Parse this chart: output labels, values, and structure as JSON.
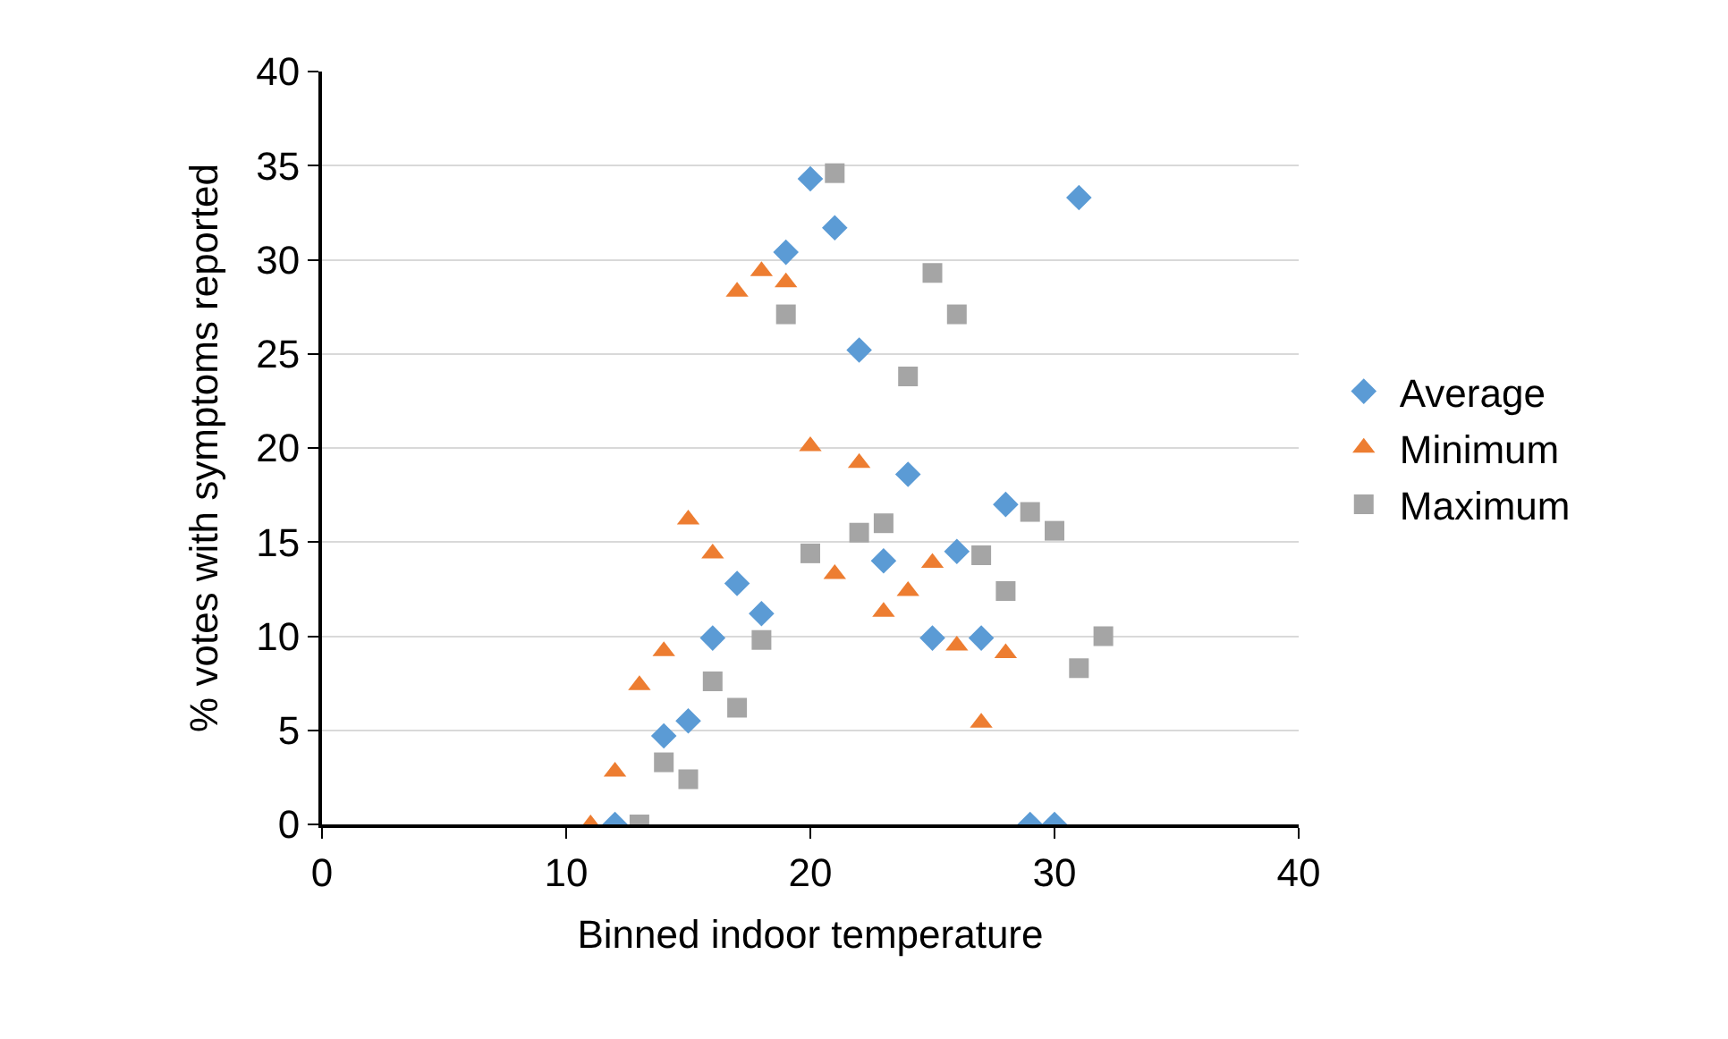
{
  "chart_data": {
    "type": "scatter",
    "xlabel": "Binned indoor temperature",
    "ylabel": "% votes with symptoms reported",
    "xlim": [
      0,
      40
    ],
    "xticks": [
      0,
      10,
      20,
      30,
      40
    ],
    "ylim": [
      0,
      40
    ],
    "yticks": [
      0,
      5,
      10,
      15,
      20,
      25,
      30,
      35,
      40
    ],
    "grid": "y",
    "legend": "right",
    "series": [
      {
        "name": "Average",
        "color": "#5b9bd5",
        "marker": "diamond",
        "x": [
          12,
          14,
          15,
          16,
          17,
          18,
          19,
          20,
          21,
          22,
          23,
          24,
          25,
          26,
          27,
          28,
          29,
          30,
          31
        ],
        "values": [
          0,
          4.7,
          5.5,
          9.9,
          12.8,
          11.2,
          30.4,
          34.3,
          31.7,
          25.2,
          14.0,
          18.6,
          9.9,
          14.5,
          9.9,
          17.0,
          0,
          0,
          33.3
        ]
      },
      {
        "name": "Minimum",
        "color": "#ed7d31",
        "marker": "triangle",
        "x": [
          11,
          12,
          13,
          14,
          15,
          16,
          17,
          18,
          19,
          20,
          21,
          22,
          23,
          24,
          25,
          26,
          27,
          28
        ],
        "values": [
          0,
          2.8,
          7.4,
          9.2,
          16.2,
          14.4,
          28.3,
          29.4,
          28.8,
          20.1,
          13.3,
          19.2,
          11.3,
          12.4,
          13.9,
          9.5,
          5.4,
          9.1
        ]
      },
      {
        "name": "Maximum",
        "color": "#a5a5a5",
        "marker": "square",
        "x": [
          13,
          14,
          15,
          16,
          17,
          18,
          19,
          20,
          21,
          22,
          23,
          24,
          25,
          26,
          27,
          28,
          29,
          30,
          31,
          32
        ],
        "values": [
          0,
          3.3,
          2.4,
          7.6,
          6.2,
          9.8,
          27.1,
          14.4,
          34.6,
          15.5,
          16.0,
          23.8,
          29.3,
          27.1,
          14.3,
          12.4,
          16.6,
          15.6,
          8.3,
          10.0
        ]
      }
    ]
  }
}
